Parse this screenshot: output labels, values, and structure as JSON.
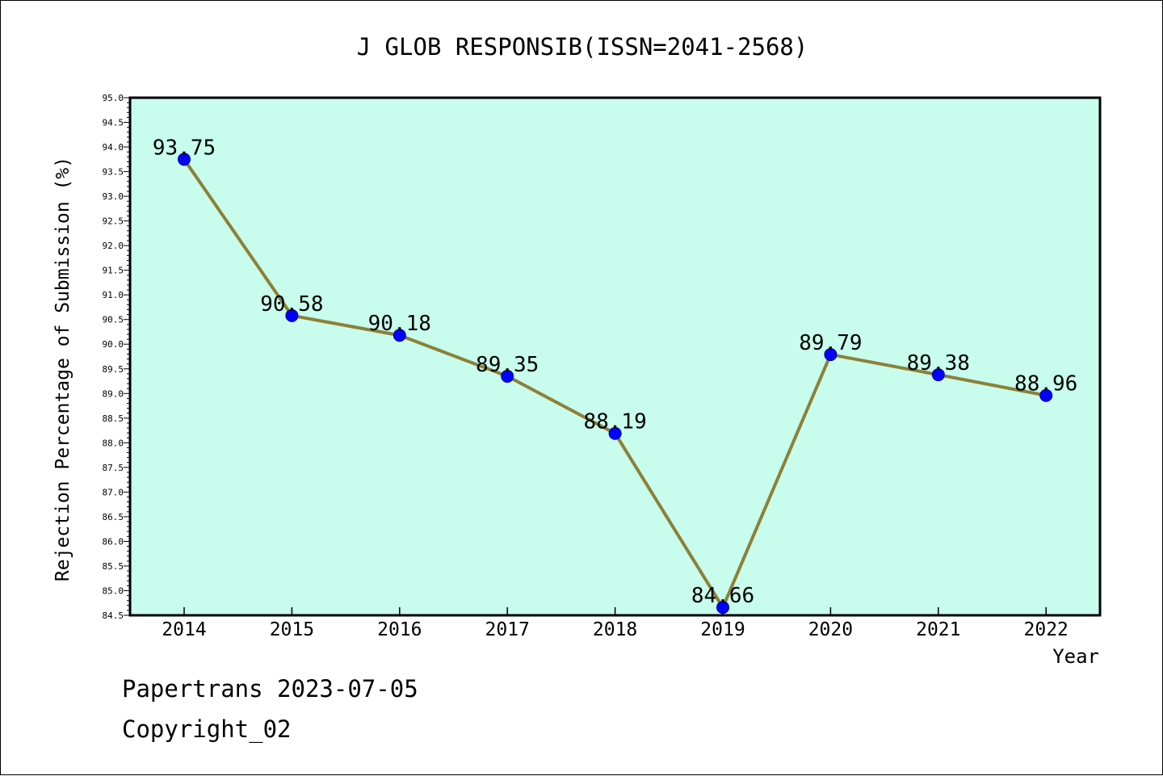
{
  "chart_data": {
    "type": "line",
    "title": "J GLOB RESPONSIB(ISSN=2041-2568)",
    "xlabel": "Year",
    "ylabel": "Rejection Percentage of Submission (%)",
    "categories": [
      "2014",
      "2015",
      "2016",
      "2017",
      "2018",
      "2019",
      "2020",
      "2021",
      "2022"
    ],
    "values": [
      93.75,
      90.58,
      90.18,
      89.35,
      88.19,
      84.66,
      89.79,
      89.38,
      88.96
    ],
    "data_labels": [
      "93.75",
      "90.58",
      "90.18",
      "89.35",
      "88.19",
      "84.66",
      "89.79",
      "89.38",
      "88.96"
    ],
    "ylim": [
      84.5,
      95.0
    ],
    "yticks": [
      "84.5",
      "85.0",
      "85.5",
      "86.0",
      "86.5",
      "87.0",
      "87.5",
      "88.0",
      "88.5",
      "89.0",
      "89.5",
      "90.0",
      "90.5",
      "91.0",
      "91.5",
      "92.0",
      "92.5",
      "93.0",
      "93.5",
      "94.0",
      "94.5",
      "95.0"
    ],
    "grid": false,
    "colors": {
      "plot_background": "#c8fcec",
      "line": "#8c8038",
      "marker": "#0000ff"
    }
  },
  "footer": {
    "line1": "Papertrans 2023-07-05",
    "line2": "Copyright_02"
  }
}
